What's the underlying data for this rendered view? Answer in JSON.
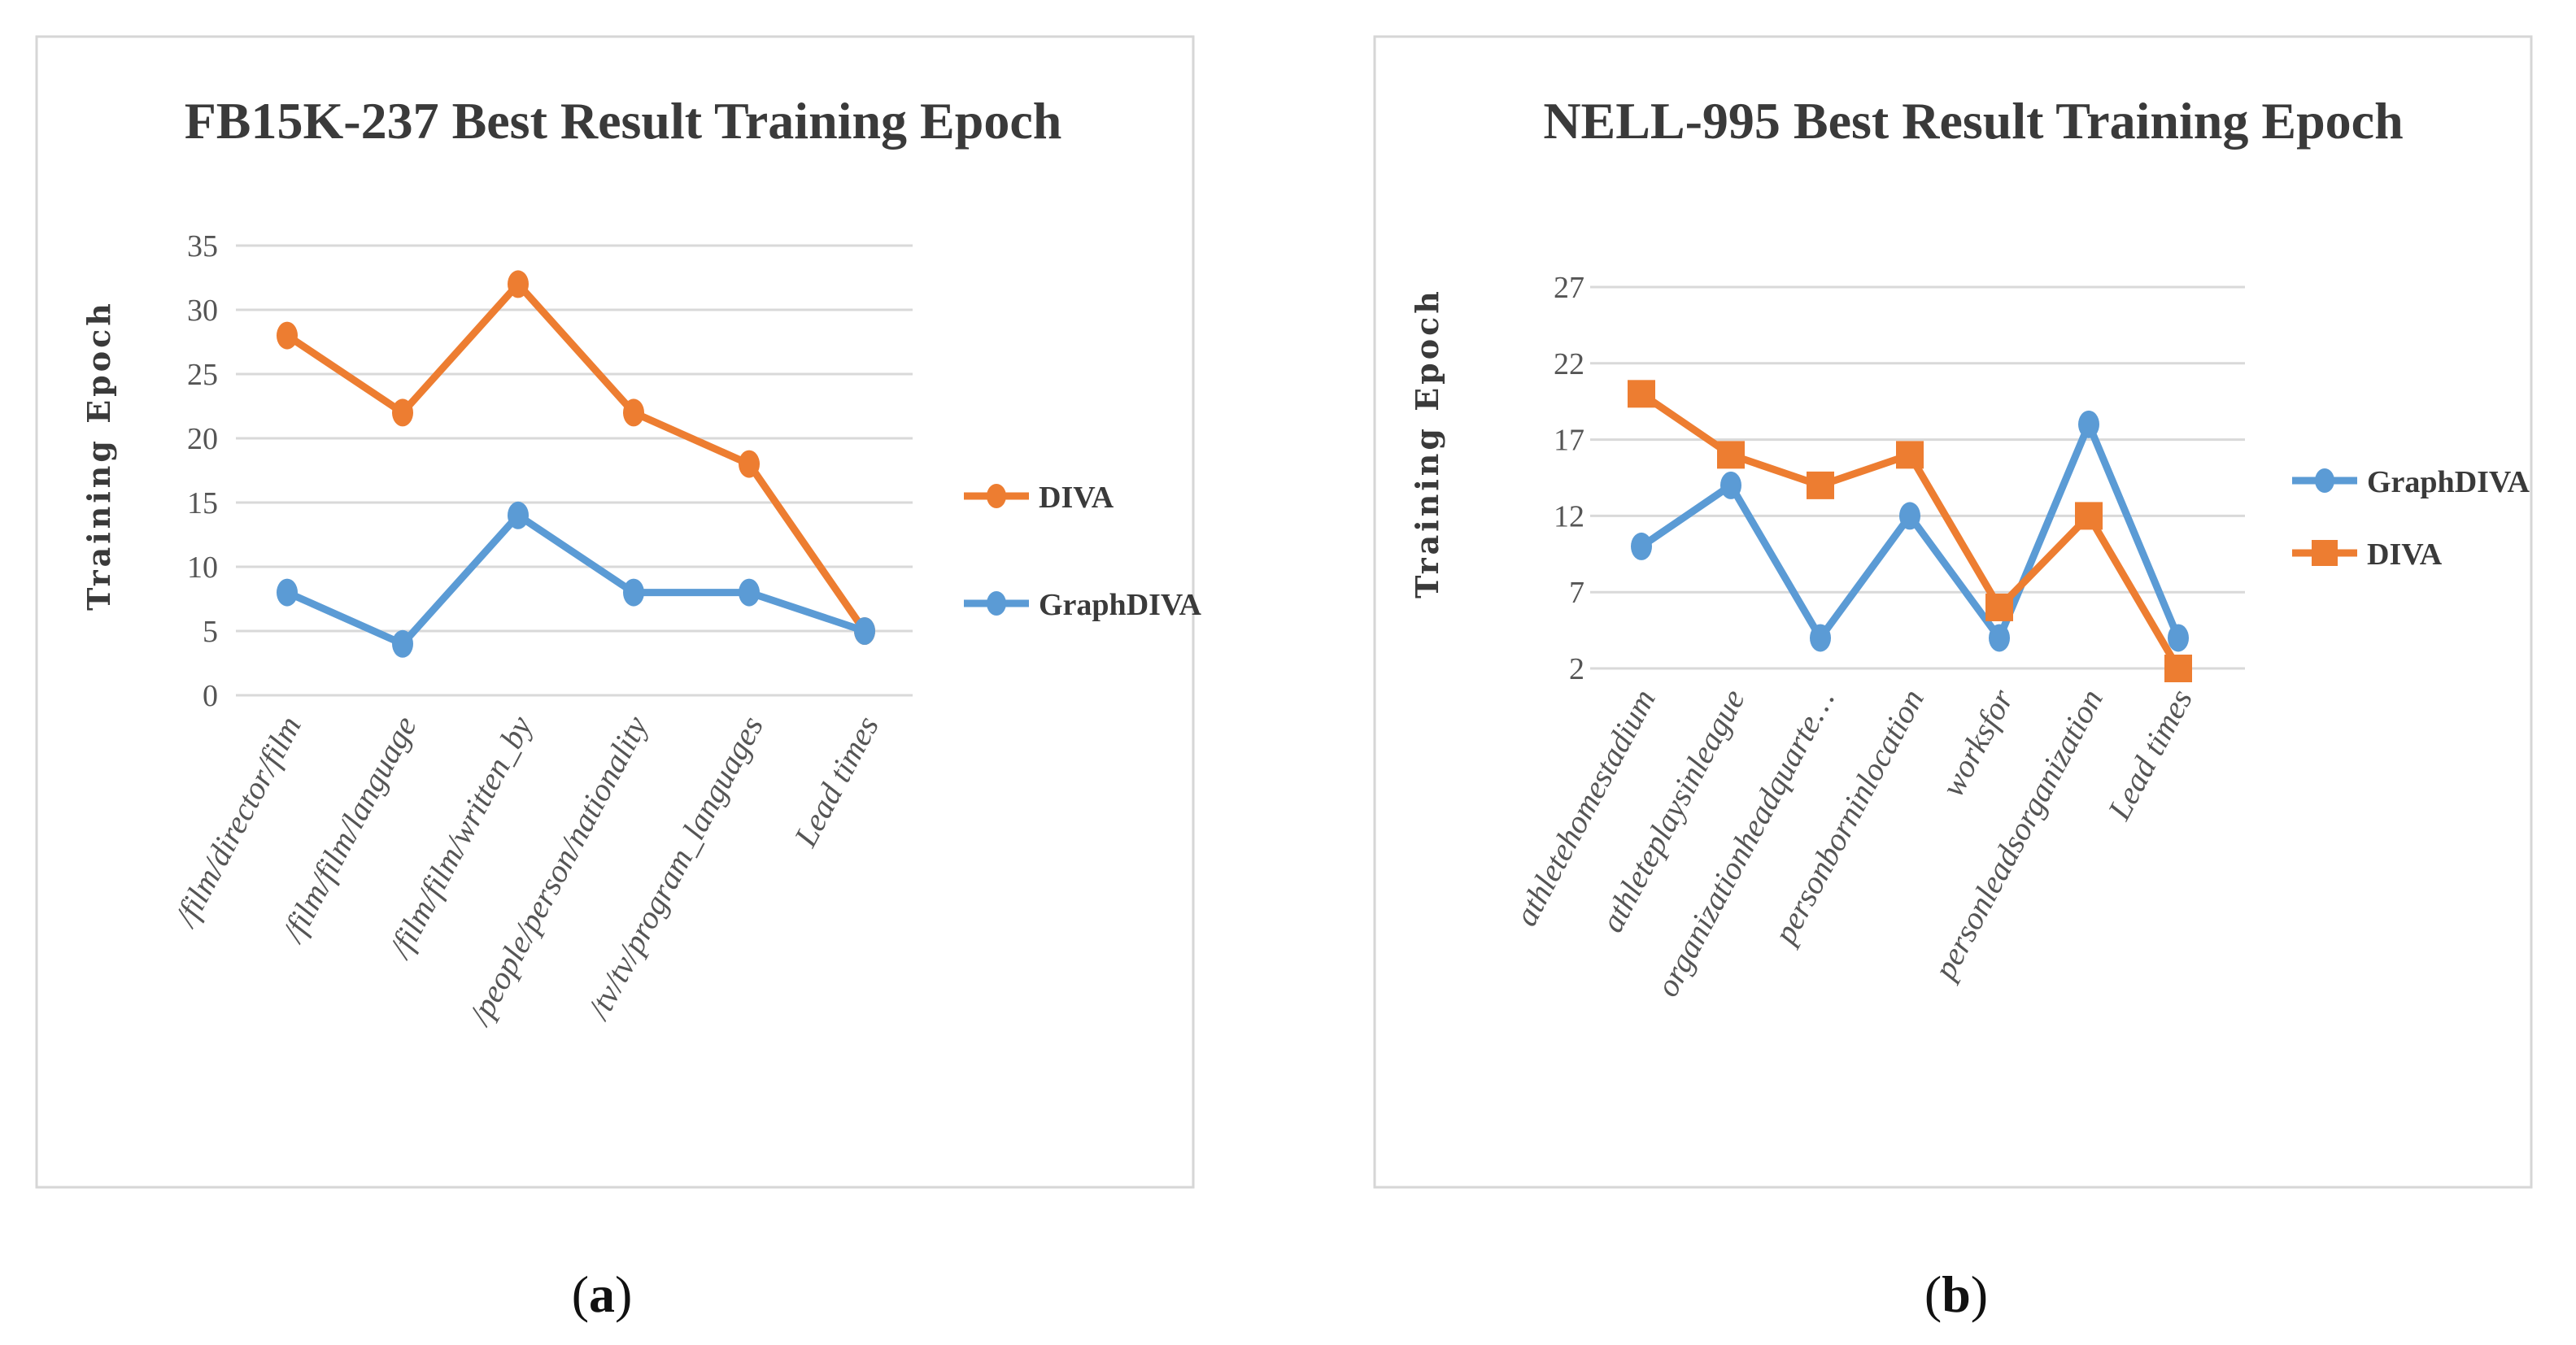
{
  "chart_data": [
    {
      "type": "line",
      "title": "FB15K-237 Best Result Training Epoch",
      "xlabel": "",
      "ylabel": "Training Epoch",
      "ylim": [
        0,
        35
      ],
      "yticks": [
        "0",
        "5",
        "10",
        "15",
        "20",
        "25",
        "30",
        "35"
      ],
      "categories": [
        "/film/director/film",
        "/film/film/language",
        "/film/film/written_by",
        "/people/person/nationality",
        "/tv/tv/program_languages",
        "Lead times"
      ],
      "grid": true,
      "legend_position": "right",
      "series": [
        {
          "name": "DIVA",
          "color": "#ED7D31",
          "marker": "circle",
          "values": [
            28,
            22,
            32,
            22,
            18,
            5
          ]
        },
        {
          "name": "GraphDIVA",
          "color": "#5B9BD5",
          "marker": "circle",
          "values": [
            8,
            4,
            14,
            8,
            8,
            5
          ]
        }
      ],
      "caption": "a"
    },
    {
      "type": "line",
      "title": "NELL-995 Best Result Training Epoch",
      "xlabel": "",
      "ylabel": "Training Epoch",
      "ylim": [
        2,
        27
      ],
      "yticks": [
        "2",
        "7",
        "12",
        "17",
        "22",
        "27"
      ],
      "categories": [
        "athletehomestadium",
        "athleteplaysinleague",
        "organizationheadquarte…",
        "personborninlocation",
        "worksfor",
        "personleadsorganization",
        "Lead times"
      ],
      "grid": true,
      "legend_position": "right",
      "series": [
        {
          "name": "GraphDIVA",
          "color": "#5B9BD5",
          "marker": "circle",
          "values": [
            10,
            14,
            4,
            12,
            4,
            18,
            4
          ]
        },
        {
          "name": "DIVA",
          "color": "#ED7D31",
          "marker": "square",
          "values": [
            20,
            16,
            14,
            16,
            6,
            12,
            2
          ]
        }
      ],
      "caption": "b"
    }
  ]
}
